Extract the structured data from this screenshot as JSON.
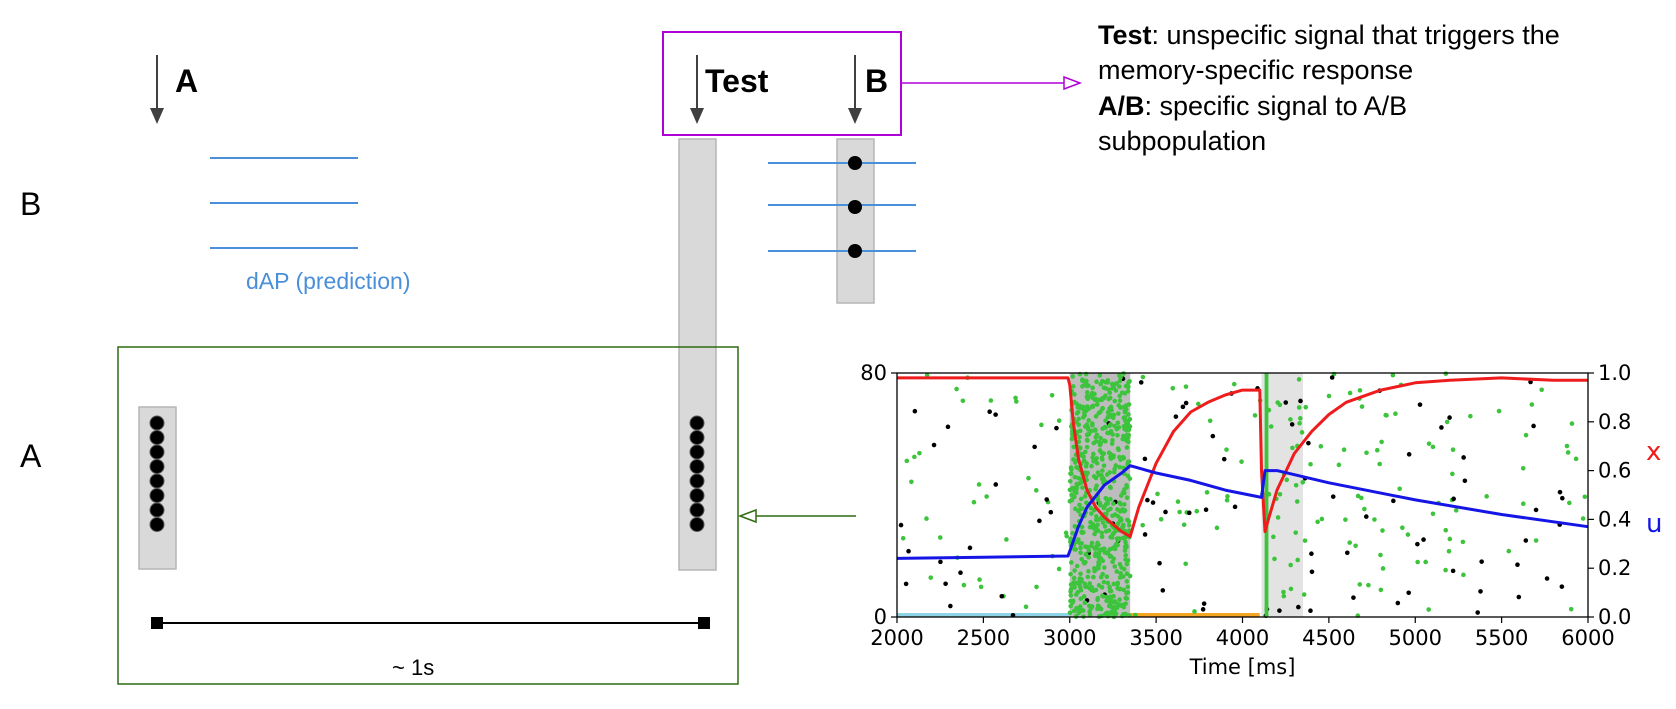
{
  "stimuli": {
    "a_label": "A",
    "test_label": "Test",
    "b_label": "B"
  },
  "rows": {
    "b_label": "B",
    "a_label": "A"
  },
  "dap_label": "dAP (prediction)",
  "duration_label": "~ 1s",
  "legend": {
    "line1_bold": "Test",
    "line1_rest": ": unspecific signal that triggers the",
    "line2": "memory-specific response",
    "line3_bold": "A/B",
    "line3_rest": ": specific signal to A/B",
    "line4": "subpopulation"
  },
  "colors": {
    "stim_box": "#b000d8",
    "population_box": "#2e6b12",
    "dap_line": "#4a8fd9",
    "gray_bar": "#d9d9d9",
    "arrow": "#404040",
    "x_line": "#ee1c1c",
    "u_line": "#1515e6",
    "green_dots": "#3cc43c",
    "black_dots": "#000000",
    "cyan_bar": "#8ed3e6",
    "orange_bar": "#f5a623"
  },
  "chart_data": {
    "type": "line",
    "xlabel": "Time [ms]",
    "ylabel": "",
    "ylabel_right_x": "x",
    "ylabel_right_u": "u",
    "xlim": [
      2000,
      6000
    ],
    "xticks": [
      "2000",
      "2500",
      "3000",
      "3500",
      "4000",
      "4500",
      "5000",
      "5500",
      "6000"
    ],
    "ylim_left": [
      0,
      80
    ],
    "yticks_left": [
      "0",
      "80"
    ],
    "ylim_right": [
      0.0,
      1.0
    ],
    "yticks_right": [
      "0.0",
      "0.2",
      "0.4",
      "0.6",
      "0.8",
      "1.0"
    ],
    "shaded_intervals": [
      {
        "x0": 3000,
        "x1": 3350,
        "tone": "dark"
      },
      {
        "x0": 4110,
        "x1": 4350,
        "tone": "light"
      }
    ],
    "bottom_bars": [
      {
        "x0": 2000,
        "x1": 3000,
        "color": "cyan"
      },
      {
        "x0": 3350,
        "x1": 4100,
        "color": "orange"
      }
    ],
    "series": [
      {
        "name": "x",
        "x": [
          2000,
          2500,
          2990,
          3000,
          3020,
          3050,
          3100,
          3150,
          3200,
          3250,
          3300,
          3350,
          3400,
          3500,
          3600,
          3700,
          3800,
          3900,
          4000,
          4100,
          4110,
          4130,
          4150,
          4200,
          4300,
          4400,
          4500,
          4600,
          4800,
          5000,
          5200,
          5500,
          5800,
          6000
        ],
        "y": [
          0.98,
          0.98,
          0.98,
          0.95,
          0.8,
          0.65,
          0.52,
          0.45,
          0.41,
          0.38,
          0.35,
          0.33,
          0.45,
          0.63,
          0.76,
          0.84,
          0.88,
          0.91,
          0.93,
          0.93,
          0.6,
          0.35,
          0.4,
          0.52,
          0.67,
          0.76,
          0.83,
          0.88,
          0.93,
          0.96,
          0.97,
          0.98,
          0.97,
          0.97
        ]
      },
      {
        "name": "u",
        "x": [
          2000,
          2500,
          2990,
          3000,
          3050,
          3100,
          3200,
          3300,
          3350,
          3500,
          3700,
          3900,
          4110,
          4130,
          4200,
          4500,
          5000,
          5500,
          6000
        ],
        "y": [
          0.24,
          0.245,
          0.25,
          0.27,
          0.37,
          0.45,
          0.54,
          0.59,
          0.62,
          0.59,
          0.56,
          0.52,
          0.49,
          0.6,
          0.6,
          0.55,
          0.48,
          0.42,
          0.37
        ]
      }
    ]
  }
}
